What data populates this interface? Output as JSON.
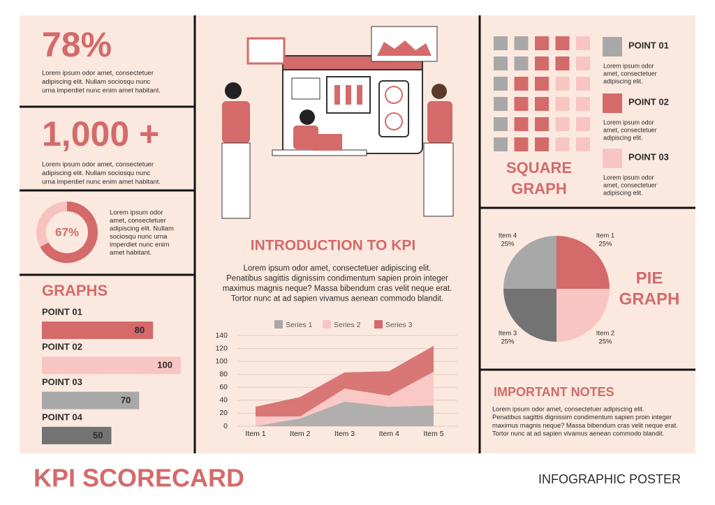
{
  "stats": [
    {
      "value": "78%",
      "text": [
        "Lorem ipsum odor amet, consectetuer",
        "adipiscing elit. Nullam sociosqu nunc",
        "urna imperdiet nunc enim amet habitant."
      ]
    },
    {
      "value": "1,000 +",
      "text": [
        "Lorem ipsum odor amet, consectetuer",
        "adipiscing elit. Nullam sociosqu nunc",
        "urna imperdiet nunc enim amet habitant."
      ]
    }
  ],
  "donut": {
    "type": "donut",
    "value": 67,
    "value_label": "67%",
    "color": "#d46a6a",
    "track_color": "#f6c3c0",
    "text": [
      "Lorem ipsum odor",
      "amet, consectetuer",
      "adipiscing elit. Nullam",
      "sociosqu nunc urna",
      "imperdiet nunc enim",
      "amet habitant."
    ]
  },
  "bar_chart": {
    "type": "bar",
    "title": "GRAPHS",
    "categories": [
      "POINT 01",
      "POINT 02",
      "POINT 03",
      "POINT 04"
    ],
    "values": [
      80,
      100,
      70,
      50
    ],
    "colors": [
      "#d46a6a",
      "#f9c5c3",
      "#a8a8a8",
      "#737373"
    ],
    "xlim": [
      0,
      100
    ]
  },
  "intro": {
    "title": "INTRODUCTION TO KPI",
    "text": [
      "Lorem ipsum odor amet, consectetuer adipiscing elit.",
      "Penatibus sagittis dignissim condimentum sapien proin integer",
      "maximus magnis neque? Massa bibendum cras velit neque erat.",
      "Tortor nunc at ad sapien vivamus aenean commodo blandit."
    ]
  },
  "area_chart": {
    "type": "area",
    "stacked": true,
    "categories": [
      "Item 1",
      "Item 2",
      "Item 3",
      "Item 4",
      "Item 5"
    ],
    "series": [
      {
        "name": "Series 1",
        "color": "#a8a8a8",
        "values": [
          0,
          12,
          38,
          30,
          32
        ]
      },
      {
        "name": "Series 2",
        "color": "#f9c5c3",
        "values": [
          15,
          3,
          20,
          17,
          52
        ]
      },
      {
        "name": "Series 3",
        "color": "#d46a6a",
        "values": [
          15,
          30,
          25,
          38,
          40
        ]
      }
    ],
    "ylim": [
      0,
      140
    ],
    "yticks": [
      0,
      20,
      40,
      60,
      80,
      100,
      120,
      140
    ],
    "grid": true
  },
  "square_graph": {
    "title": [
      "SQUARE",
      "GRAPH"
    ],
    "grid": [
      [
        "#a8a8a8",
        "#a8a8a8",
        "#d46a6a",
        "#d46a6a",
        "#f9c5c3"
      ],
      [
        "#a8a8a8",
        "#a8a8a8",
        "#d46a6a",
        "#d46a6a",
        "#f9c5c3"
      ],
      [
        "#a8a8a8",
        "#d46a6a",
        "#d46a6a",
        "#f9c5c3",
        "#f9c5c3"
      ],
      [
        "#a8a8a8",
        "#d46a6a",
        "#d46a6a",
        "#f9c5c3",
        "#f9c5c3"
      ],
      [
        "#a8a8a8",
        "#d46a6a",
        "#d46a6a",
        "#f9c5c3",
        "#f9c5c3"
      ],
      [
        "#a8a8a8",
        "#d46a6a",
        "#d46a6a",
        "#f9c5c3",
        "#f9c5c3"
      ]
    ],
    "legend": [
      {
        "name": "POINT 01",
        "color": "#a8a8a8",
        "text": [
          "Lorem ipsum odor",
          "amet, consectetuer",
          "adipiscing elit."
        ]
      },
      {
        "name": "POINT 02",
        "color": "#d46a6a",
        "text": [
          "Lorem ipsum odor",
          "amet, consectetuer",
          "adipiscing elit."
        ]
      },
      {
        "name": "POINT 03",
        "color": "#f9c5c3",
        "text": [
          "Lorem ipsum odor",
          "amet, consectetuer",
          "adipiscing elit."
        ]
      }
    ]
  },
  "pie_chart": {
    "type": "pie",
    "title": [
      "PIE",
      "GRAPH"
    ],
    "categories": [
      "Item 1",
      "Item 2",
      "Item 3",
      "Item 4"
    ],
    "values": [
      25,
      25,
      25,
      25
    ],
    "value_labels": [
      "25%",
      "25%",
      "25%",
      "25%"
    ],
    "colors": [
      "#d46a6a",
      "#f9c5c3",
      "#737373",
      "#a8a8a8"
    ]
  },
  "notes": {
    "title": "IMPORTANT NOTES",
    "text": [
      "Lorem ipsum odor amet, consectetuer adipiscing elit.",
      "Penatibus sagittis dignissim condimentum sapien proin integer",
      "maximus magnis neque? Massa bibendum cras velit neque erat.",
      "Tortor nunc at ad sapien vivamus aenean commodo blandit."
    ]
  },
  "footer": {
    "title": "KPI SCORECARD",
    "subtitle": "INFOGRAPHIC POSTER"
  }
}
